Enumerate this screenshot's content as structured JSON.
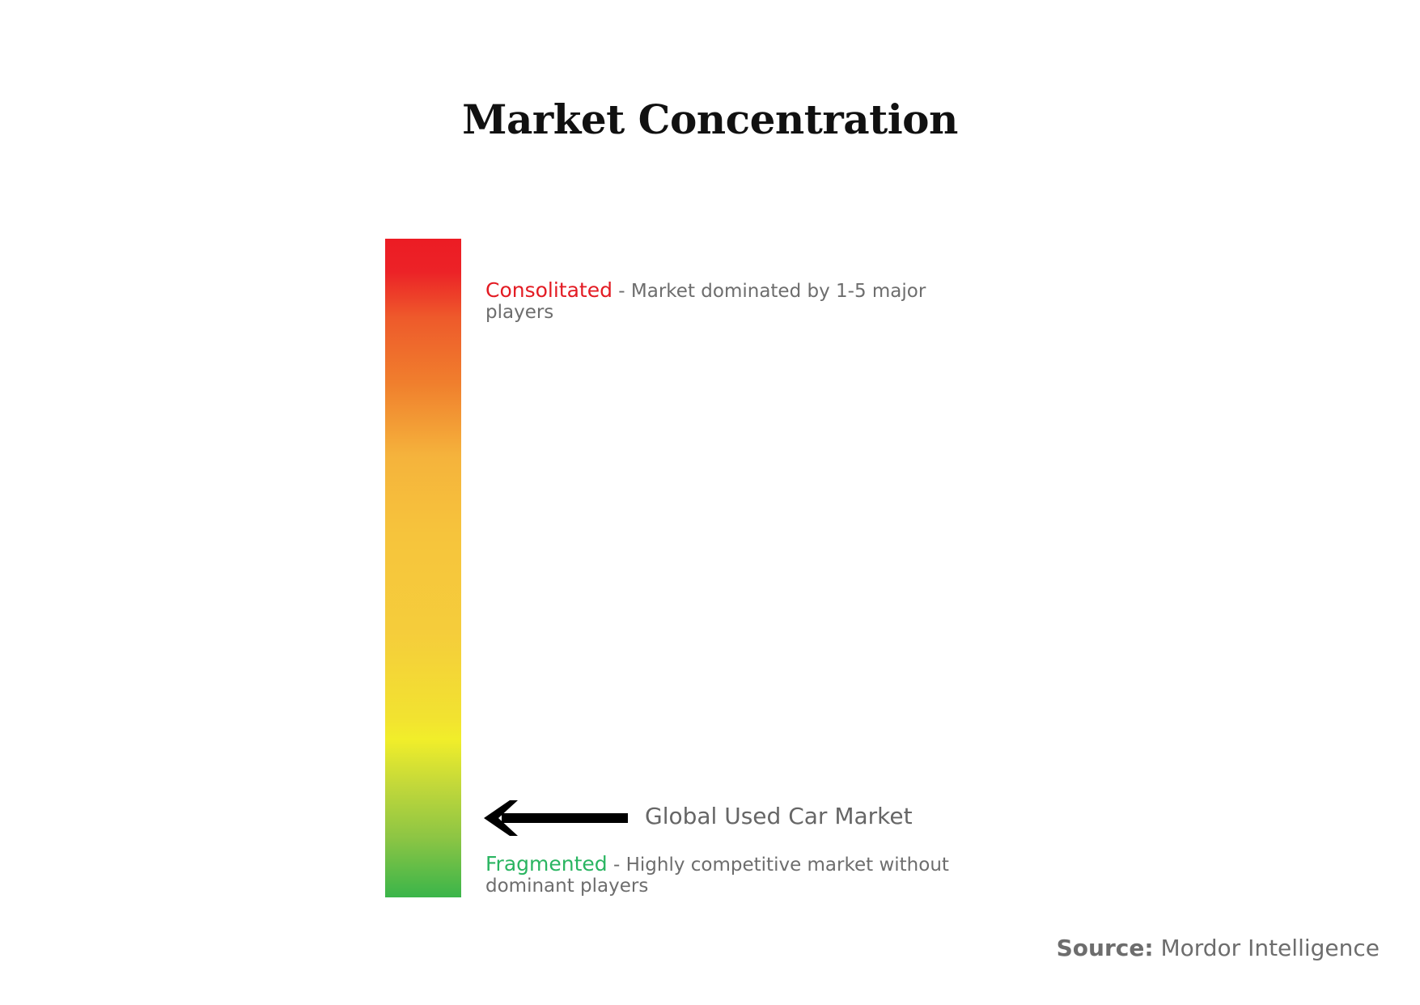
{
  "title": "Market Concentration",
  "chart_data": {
    "type": "scale",
    "levels": [
      {
        "term": "Consolitated",
        "separator": " - ",
        "description": "Market dominated by 1-5 major players",
        "color": "#e31b23"
      },
      {
        "term": "Fragmented",
        "separator": " - ",
        "description": "Highly competitive market without dominant players",
        "color": "#2ab561"
      }
    ],
    "marker": {
      "label": "Global Used Car Market",
      "position": 0.87
    },
    "gradient_colors": [
      "#ec1c24",
      "#f07f2d",
      "#f6c43c",
      "#f1ee2a",
      "#3ab54a"
    ]
  },
  "source": {
    "label": "Source:",
    "value": "Mordor Intelligence"
  }
}
